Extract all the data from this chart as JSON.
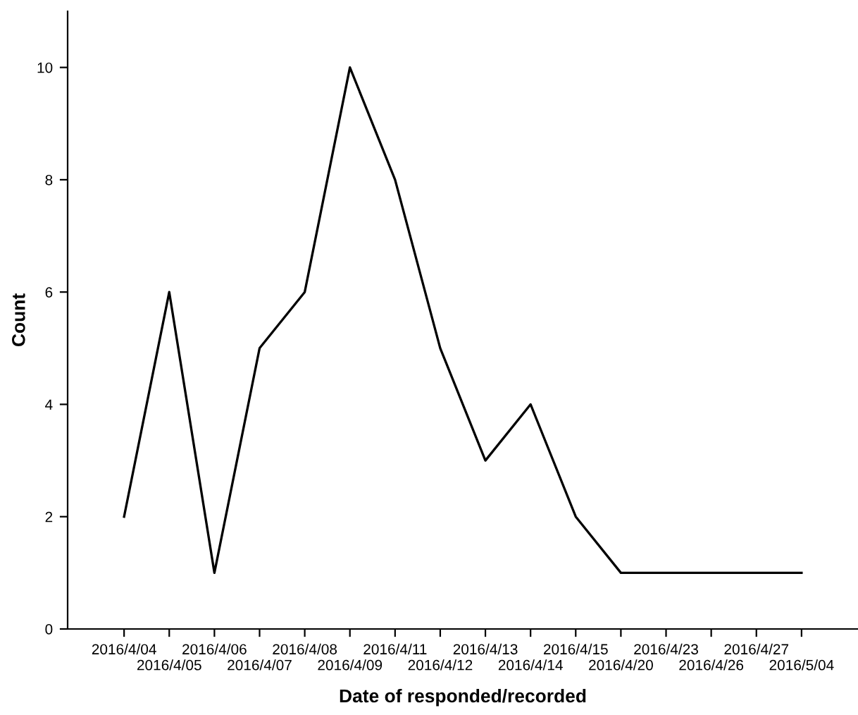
{
  "chart_data": {
    "type": "line",
    "xlabel": "Date of responded/recorded",
    "ylabel": "Count",
    "categories": [
      "2016/4/04",
      "2016/4/05",
      "2016/4/06",
      "2016/4/07",
      "2016/4/08",
      "2016/4/09",
      "2016/4/11",
      "2016/4/12",
      "2016/4/13",
      "2016/4/14",
      "2016/4/15",
      "2016/4/20",
      "2016/4/23",
      "2016/4/26",
      "2016/4/27",
      "2016/5/04"
    ],
    "values": [
      2,
      6,
      1,
      5,
      6,
      10,
      8,
      5,
      3,
      4,
      2,
      1,
      1,
      1,
      1,
      1
    ],
    "color": "#000000",
    "ylim": [
      0,
      11
    ],
    "yticks": [
      0,
      2,
      4,
      6,
      8,
      10
    ],
    "grid": false,
    "marker": "none",
    "line_style": "solid"
  }
}
